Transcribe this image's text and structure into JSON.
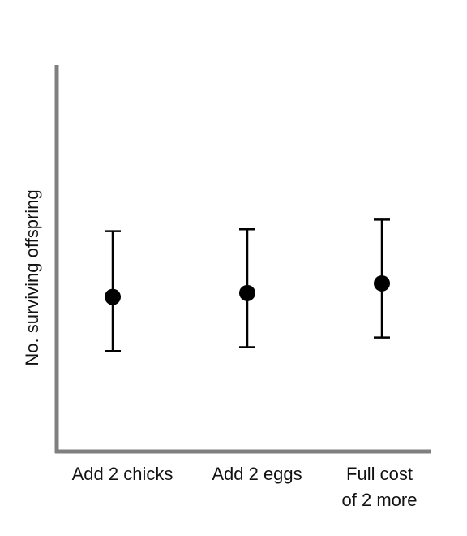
{
  "chart_data": {
    "type": "scatter",
    "title": "",
    "xlabel": "",
    "ylabel": "No. surviving offspring",
    "categories": [
      "Add 2 chicks",
      "Add 2 eggs",
      "Full cost of 2 more"
    ],
    "category_lines": [
      [
        "Add 2 chicks"
      ],
      [
        "Add 2 eggs"
      ],
      [
        "Full cost",
        "of 2 more"
      ]
    ],
    "y_axis_ticks": "none",
    "grid": false,
    "legend": "none",
    "series": [
      {
        "values": [
          4.0,
          4.1,
          4.35
        ],
        "error_low": [
          2.6,
          2.7,
          2.95
        ],
        "error_high": [
          5.7,
          5.75,
          6.0
        ]
      }
    ],
    "ylim": [
      0,
      10
    ],
    "colors": {
      "axis": "#7f7f7f",
      "marker": "#000000",
      "errorbar": "#000000"
    }
  }
}
